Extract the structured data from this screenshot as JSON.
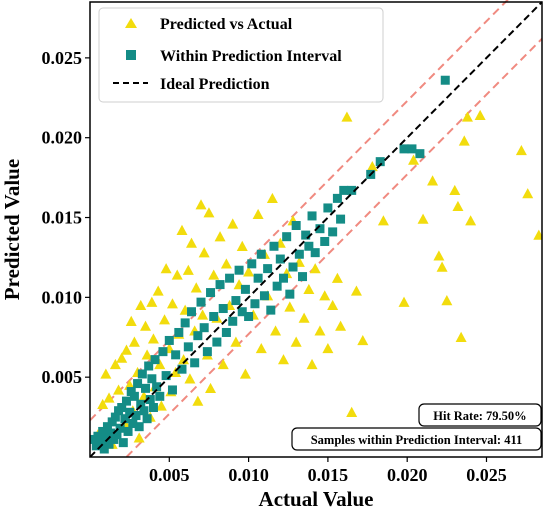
{
  "chart_data": {
    "type": "scatter",
    "title": "",
    "xlabel": "Actual Value",
    "ylabel": "Predicted Value",
    "xlim": [
      0.0,
      0.0285
    ],
    "ylim": [
      0.0,
      0.0285
    ],
    "x_ticks": [
      "0.005",
      "0.010",
      "0.015",
      "0.020",
      "0.025"
    ],
    "y_ticks": [
      "0.005",
      "0.010",
      "0.015",
      "0.020",
      "0.025"
    ],
    "grid": false,
    "legend": {
      "placement": "top-left",
      "entries": [
        "Predicted vs Actual",
        "Within Prediction Interval",
        "Ideal Prediction"
      ]
    },
    "colors": {
      "predicted": "#f2dc0d",
      "within": "#148c86",
      "ideal": "#000000",
      "interval": "#f08a80"
    },
    "series": [
      {
        "name": "Predicted vs Actual",
        "marker": "triangle",
        "points": [
          [
            0.0005,
            0.0014
          ],
          [
            0.0008,
            0.0033
          ],
          [
            0.001,
            0.0052
          ],
          [
            0.0012,
            0.0037
          ],
          [
            0.0014,
            0.0008
          ],
          [
            0.0016,
            0.0058
          ],
          [
            0.0018,
            0.0042
          ],
          [
            0.002,
            0.0062
          ],
          [
            0.0022,
            0.0021
          ],
          [
            0.0023,
            0.0067
          ],
          [
            0.0025,
            0.0045
          ],
          [
            0.0026,
            0.0085
          ],
          [
            0.0027,
            0.0029
          ],
          [
            0.0028,
            0.0072
          ],
          [
            0.003,
            0.0053
          ],
          [
            0.0031,
            0.0012
          ],
          [
            0.0032,
            0.0095
          ],
          [
            0.0034,
            0.0038
          ],
          [
            0.0035,
            0.0082
          ],
          [
            0.0036,
            0.0064
          ],
          [
            0.0038,
            0.0025
          ],
          [
            0.0039,
            0.0097
          ],
          [
            0.004,
            0.0074
          ],
          [
            0.0041,
            0.0044
          ],
          [
            0.0043,
            0.0104
          ],
          [
            0.0044,
            0.0058
          ],
          [
            0.0045,
            0.0032
          ],
          [
            0.0047,
            0.0086
          ],
          [
            0.0048,
            0.0118
          ],
          [
            0.005,
            0.0068
          ],
          [
            0.0051,
            0.0041
          ],
          [
            0.0052,
            0.0096
          ],
          [
            0.0054,
            0.0053
          ],
          [
            0.0055,
            0.0114
          ],
          [
            0.0056,
            0.0077
          ],
          [
            0.0058,
            0.0142
          ],
          [
            0.0059,
            0.0061
          ],
          [
            0.006,
            0.0092
          ],
          [
            0.0062,
            0.0117
          ],
          [
            0.0063,
            0.0049
          ],
          [
            0.0064,
            0.0134
          ],
          [
            0.0066,
            0.0079
          ],
          [
            0.0067,
            0.0106
          ],
          [
            0.0068,
            0.0035
          ],
          [
            0.007,
            0.0158
          ],
          [
            0.0071,
            0.0089
          ],
          [
            0.0072,
            0.0128
          ],
          [
            0.0074,
            0.0064
          ],
          [
            0.0075,
            0.0153
          ],
          [
            0.0076,
            0.0043
          ],
          [
            0.0078,
            0.0114
          ],
          [
            0.008,
            0.0087
          ],
          [
            0.0082,
            0.0138
          ],
          [
            0.0084,
            0.0058
          ],
          [
            0.0086,
            0.0121
          ],
          [
            0.0088,
            0.0095
          ],
          [
            0.009,
            0.0146
          ],
          [
            0.0092,
            0.0072
          ],
          [
            0.0094,
            0.0108
          ],
          [
            0.0096,
            0.0132
          ],
          [
            0.0098,
            0.0052
          ],
          [
            0.01,
            0.0116
          ],
          [
            0.0103,
            0.0089
          ],
          [
            0.0106,
            0.0152
          ],
          [
            0.0108,
            0.0068
          ],
          [
            0.011,
            0.0127
          ],
          [
            0.0112,
            0.0101
          ],
          [
            0.0115,
            0.0162
          ],
          [
            0.0117,
            0.0079
          ],
          [
            0.012,
            0.0134
          ],
          [
            0.0122,
            0.0061
          ],
          [
            0.0124,
            0.0115
          ],
          [
            0.0126,
            0.0094
          ],
          [
            0.0128,
            0.0148
          ],
          [
            0.013,
            0.0072
          ],
          [
            0.0132,
            0.0122
          ],
          [
            0.0135,
            0.0087
          ],
          [
            0.0138,
            0.0105
          ],
          [
            0.014,
            0.0058
          ],
          [
            0.0142,
            0.0118
          ],
          [
            0.0145,
            0.0079
          ],
          [
            0.0148,
            0.0101
          ],
          [
            0.015,
            0.0068
          ],
          [
            0.0153,
            0.0095
          ],
          [
            0.0156,
            0.0112
          ],
          [
            0.0158,
            0.0082
          ],
          [
            0.0162,
            0.0213
          ],
          [
            0.0165,
            0.0028
          ],
          [
            0.0168,
            0.0104
          ],
          [
            0.0172,
            0.0073
          ],
          [
            0.0178,
            0.0182
          ],
          [
            0.0185,
            0.0148
          ],
          [
            0.0198,
            0.0097
          ],
          [
            0.0204,
            0.0186
          ],
          [
            0.021,
            0.0149
          ],
          [
            0.0216,
            0.0173
          ],
          [
            0.022,
            0.0126
          ],
          [
            0.0222,
            0.0119
          ],
          [
            0.0225,
            0.0098
          ],
          [
            0.023,
            0.0167
          ],
          [
            0.0232,
            0.0157
          ],
          [
            0.0234,
            0.0075
          ],
          [
            0.0236,
            0.0198
          ],
          [
            0.0238,
            0.0213
          ],
          [
            0.024,
            0.0148
          ],
          [
            0.0246,
            0.0214
          ],
          [
            0.0272,
            0.0192
          ],
          [
            0.0276,
            0.0165
          ],
          [
            0.0283,
            0.0139
          ]
        ]
      },
      {
        "name": "Within Prediction Interval",
        "marker": "square",
        "points": [
          [
            0.0002,
            0.0011
          ],
          [
            0.0004,
            0.0007
          ],
          [
            0.0005,
            0.0013
          ],
          [
            0.0007,
            0.0009
          ],
          [
            0.0008,
            0.0016
          ],
          [
            0.0009,
            0.0005
          ],
          [
            0.001,
            0.0012
          ],
          [
            0.0011,
            0.0019
          ],
          [
            0.0012,
            0.0008
          ],
          [
            0.0013,
            0.0015
          ],
          [
            0.0014,
            0.0022
          ],
          [
            0.0015,
            0.0011
          ],
          [
            0.0016,
            0.0025
          ],
          [
            0.0017,
            0.0014
          ],
          [
            0.0018,
            0.0029
          ],
          [
            0.0019,
            0.0018
          ],
          [
            0.002,
            0.0031
          ],
          [
            0.0021,
            0.0009
          ],
          [
            0.0022,
            0.0024
          ],
          [
            0.0023,
            0.0035
          ],
          [
            0.0024,
            0.0016
          ],
          [
            0.0025,
            0.0028
          ],
          [
            0.0026,
            0.0041
          ],
          [
            0.0027,
            0.0021
          ],
          [
            0.0028,
            0.0038
          ],
          [
            0.0029,
            0.0026
          ],
          [
            0.003,
            0.0046
          ],
          [
            0.0031,
            0.0019
          ],
          [
            0.0032,
            0.0033
          ],
          [
            0.0033,
            0.0052
          ],
          [
            0.0034,
            0.0029
          ],
          [
            0.0035,
            0.0043
          ],
          [
            0.0036,
            0.0024
          ],
          [
            0.0037,
            0.0057
          ],
          [
            0.0038,
            0.0036
          ],
          [
            0.0039,
            0.0049
          ],
          [
            0.004,
            0.0031
          ],
          [
            0.0041,
            0.0061
          ],
          [
            0.0042,
            0.0044
          ],
          [
            0.0044,
            0.0038
          ],
          [
            0.0046,
            0.0066
          ],
          [
            0.0048,
            0.0051
          ],
          [
            0.005,
            0.0073
          ],
          [
            0.0052,
            0.0042
          ],
          [
            0.0054,
            0.0064
          ],
          [
            0.0056,
            0.0078
          ],
          [
            0.0058,
            0.0055
          ],
          [
            0.006,
            0.0084
          ],
          [
            0.0062,
            0.0069
          ],
          [
            0.0064,
            0.0091
          ],
          [
            0.0066,
            0.0059
          ],
          [
            0.0068,
            0.0076
          ],
          [
            0.007,
            0.0097
          ],
          [
            0.0072,
            0.0081
          ],
          [
            0.0074,
            0.0066
          ],
          [
            0.0076,
            0.0103
          ],
          [
            0.0078,
            0.0088
          ],
          [
            0.008,
            0.0072
          ],
          [
            0.0082,
            0.0108
          ],
          [
            0.0084,
            0.0093
          ],
          [
            0.0086,
            0.0078
          ],
          [
            0.0088,
            0.0112
          ],
          [
            0.009,
            0.0085
          ],
          [
            0.0092,
            0.0098
          ],
          [
            0.0094,
            0.0117
          ],
          [
            0.0096,
            0.0091
          ],
          [
            0.0098,
            0.0105
          ],
          [
            0.01,
            0.0088
          ],
          [
            0.0102,
            0.0121
          ],
          [
            0.0104,
            0.0096
          ],
          [
            0.0106,
            0.0112
          ],
          [
            0.0108,
            0.0127
          ],
          [
            0.011,
            0.0101
          ],
          [
            0.0112,
            0.0118
          ],
          [
            0.0114,
            0.0092
          ],
          [
            0.0116,
            0.0132
          ],
          [
            0.0118,
            0.0107
          ],
          [
            0.012,
            0.0124
          ],
          [
            0.0122,
            0.0112
          ],
          [
            0.0124,
            0.0138
          ],
          [
            0.0126,
            0.0102
          ],
          [
            0.0128,
            0.0119
          ],
          [
            0.013,
            0.0145
          ],
          [
            0.0132,
            0.0127
          ],
          [
            0.0134,
            0.0113
          ],
          [
            0.0136,
            0.0139
          ],
          [
            0.0138,
            0.0132
          ],
          [
            0.014,
            0.0151
          ],
          [
            0.0142,
            0.0128
          ],
          [
            0.0145,
            0.0143
          ],
          [
            0.0148,
            0.0135
          ],
          [
            0.015,
            0.0156
          ],
          [
            0.0153,
            0.0141
          ],
          [
            0.0156,
            0.0162
          ],
          [
            0.0158,
            0.0149
          ],
          [
            0.016,
            0.0167
          ],
          [
            0.0165,
            0.0167
          ],
          [
            0.0177,
            0.0177
          ],
          [
            0.0183,
            0.0185
          ],
          [
            0.0198,
            0.0193
          ],
          [
            0.0203,
            0.0193
          ],
          [
            0.0208,
            0.019
          ],
          [
            0.0224,
            0.0236
          ]
        ]
      }
    ],
    "ideal_line": [
      [
        0.0,
        0.0
      ],
      [
        0.0285,
        0.0285
      ]
    ],
    "interval_lines": [
      {
        "name": "upper bound",
        "points": [
          [
            0.0,
            0.0023
          ],
          [
            0.0285,
            0.0308
          ]
        ]
      },
      {
        "name": "lower bound",
        "points": [
          [
            0.0,
            -0.0023
          ],
          [
            0.0285,
            0.0262
          ]
        ]
      }
    ],
    "annotations": {
      "hit_rate": "Hit Rate: 79.50%",
      "samples": "Samples within Prediction Interval: 411"
    }
  }
}
